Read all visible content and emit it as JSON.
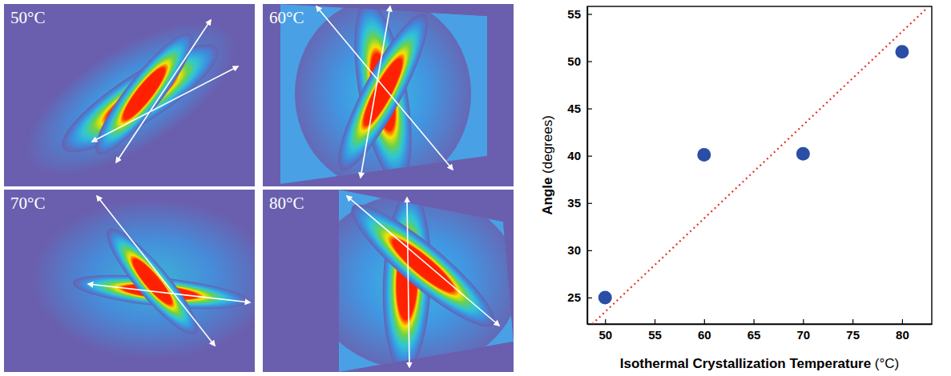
{
  "images": [
    {
      "label": "50°C"
    },
    {
      "label": "60°C"
    },
    {
      "label": "70°C"
    },
    {
      "label": "80°C"
    }
  ],
  "chart_data": {
    "type": "scatter",
    "x_label": "Isothermal Crystallization Temperature (°C)",
    "y_label": "Angle (degrees)",
    "xlim": [
      48.2,
      83
    ],
    "ylim": [
      22.2,
      55.8
    ],
    "xticks": [
      50,
      55,
      60,
      65,
      70,
      75,
      80
    ],
    "yticks": [
      25,
      30,
      35,
      40,
      45,
      50,
      55
    ],
    "grid": false,
    "series": [
      {
        "type": "scatter",
        "color": "#2a4ea5",
        "marker": "circle",
        "x": [
          50,
          60,
          70,
          80
        ],
        "values": [
          25,
          40.1,
          40.2,
          51
        ]
      },
      {
        "type": "line",
        "color": "#e4312b",
        "line_style": "dotted",
        "x": [
          48.7,
          82.5
        ],
        "values": [
          22.2,
          55.6
        ]
      }
    ]
  }
}
